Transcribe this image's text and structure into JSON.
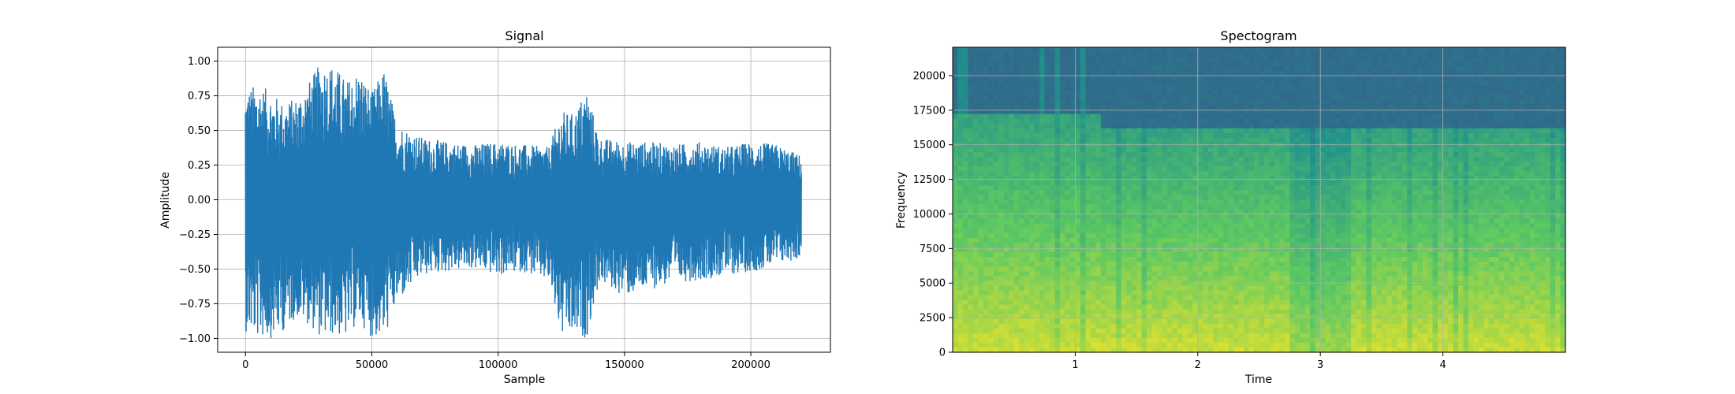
{
  "chart_data": [
    {
      "type": "line",
      "title": "Signal",
      "xlabel": "Sample",
      "ylabel": "Amplitude",
      "xlim": [
        -11000,
        231500
      ],
      "ylim": [
        -1.1,
        1.1
      ],
      "xticks": [
        0,
        50000,
        100000,
        150000,
        200000
      ],
      "yticks": [
        -1.0,
        -0.75,
        -0.5,
        -0.25,
        0.0,
        0.25,
        0.5,
        0.75,
        1.0
      ],
      "xtick_labels": [
        "0",
        "50000",
        "100000",
        "150000",
        "200000"
      ],
      "ytick_labels": [
        "−1.00",
        "−0.75",
        "−0.50",
        "−0.25",
        "0.00",
        "0.25",
        "0.50",
        "0.75",
        "1.00"
      ],
      "grid": true,
      "color": "#1f77b4",
      "series": [
        {
          "x": [
            0,
            5000,
            10000,
            15000,
            20000,
            25000,
            30000,
            35000,
            40000,
            45000,
            50000,
            55000,
            60000,
            70000,
            80000,
            90000,
            100000,
            110000,
            120000,
            125000,
            130000,
            135000,
            140000,
            150000,
            160000,
            170000,
            180000,
            190000,
            200000,
            210000,
            220000
          ],
          "upper": [
            0.8,
            0.84,
            0.78,
            0.7,
            0.74,
            0.85,
            1.0,
            0.98,
            0.86,
            0.95,
            0.78,
            0.95,
            0.55,
            0.45,
            0.42,
            0.4,
            0.42,
            0.4,
            0.38,
            0.64,
            0.62,
            0.81,
            0.45,
            0.42,
            0.42,
            0.4,
            0.42,
            0.38,
            0.42,
            0.4,
            0.32
          ],
          "lower": [
            -0.95,
            -1.0,
            -1.0,
            -0.95,
            -0.85,
            -0.9,
            -1.0,
            -0.98,
            -1.0,
            -0.88,
            -1.0,
            -1.0,
            -0.75,
            -0.55,
            -0.52,
            -0.5,
            -0.55,
            -0.52,
            -0.6,
            -1.0,
            -1.0,
            -1.0,
            -0.6,
            -0.7,
            -0.65,
            -0.6,
            -0.58,
            -0.55,
            -0.52,
            -0.48,
            -0.42
          ]
        }
      ]
    },
    {
      "type": "heatmap",
      "title": "Spectogram",
      "xlabel": "Time",
      "ylabel": "Frequency",
      "xlim": [
        0,
        5
      ],
      "ylim": [
        0,
        22050
      ],
      "xticks": [
        1,
        2,
        3,
        4
      ],
      "yticks": [
        0,
        2500,
        5000,
        7500,
        10000,
        12500,
        15000,
        17500,
        20000
      ],
      "xtick_labels": [
        "1",
        "2",
        "3",
        "4"
      ],
      "ytick_labels": [
        "0",
        "2500",
        "5000",
        "7500",
        "10000",
        "12500",
        "15000",
        "17500",
        "20000"
      ],
      "grid": true,
      "colormap": "viridis"
    }
  ]
}
